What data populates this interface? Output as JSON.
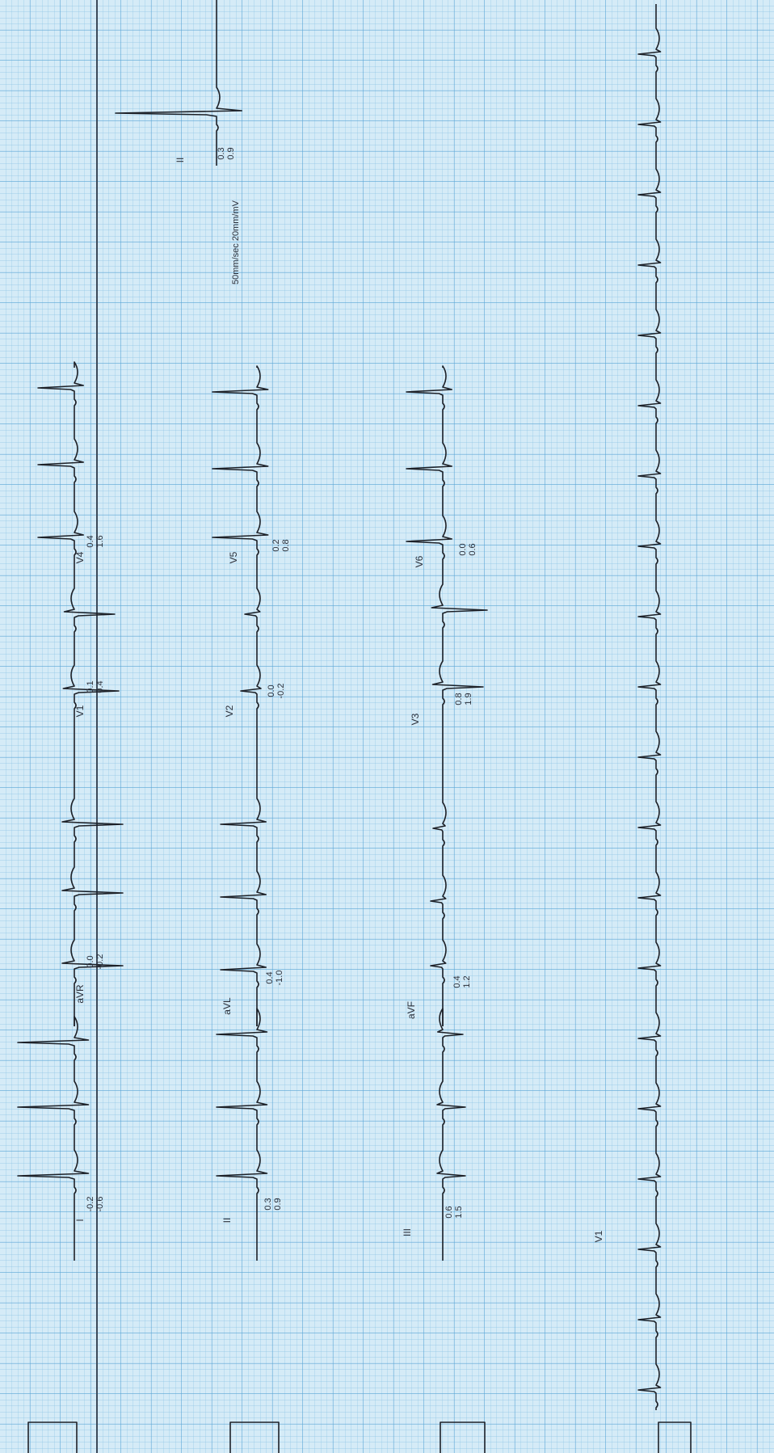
{
  "strip": {
    "speed_gain": "50mm/sec 20mm/mV",
    "top_lead": {
      "label": "II",
      "measurements": [
        "0.3",
        "0.9"
      ]
    },
    "rows": [
      {
        "leads": [
          {
            "label": "I",
            "measurements": [
              "-0.2",
              "-0.6"
            ]
          },
          {
            "label": "aVR",
            "measurements": [
              "0.0",
              "-0.2"
            ]
          },
          {
            "label": "V1",
            "measurements": [
              "0.1",
              "0.4"
            ]
          },
          {
            "label": "V4",
            "measurements": [
              "0.4",
              "1.6"
            ]
          }
        ]
      },
      {
        "leads": [
          {
            "label": "II",
            "measurements": [
              "0.3",
              "0.9"
            ]
          },
          {
            "label": "aVL",
            "measurements": [
              "0.4",
              "-1.0"
            ]
          },
          {
            "label": "V2",
            "measurements": [
              "0.0",
              "-0.2"
            ]
          },
          {
            "label": "V5",
            "measurements": [
              "0.2",
              "0.8"
            ]
          }
        ]
      },
      {
        "leads": [
          {
            "label": "III",
            "measurements": [
              "0.6",
              "1.5"
            ]
          },
          {
            "label": "aVF",
            "measurements": [
              "0.4",
              "1.2"
            ]
          },
          {
            "label": "V3",
            "measurements": [
              "0.8",
              "1.9"
            ]
          },
          {
            "label": "V6",
            "measurements": [
              "0.0",
              "0.6"
            ]
          }
        ]
      }
    ],
    "rhythm": {
      "label": "V1"
    }
  }
}
